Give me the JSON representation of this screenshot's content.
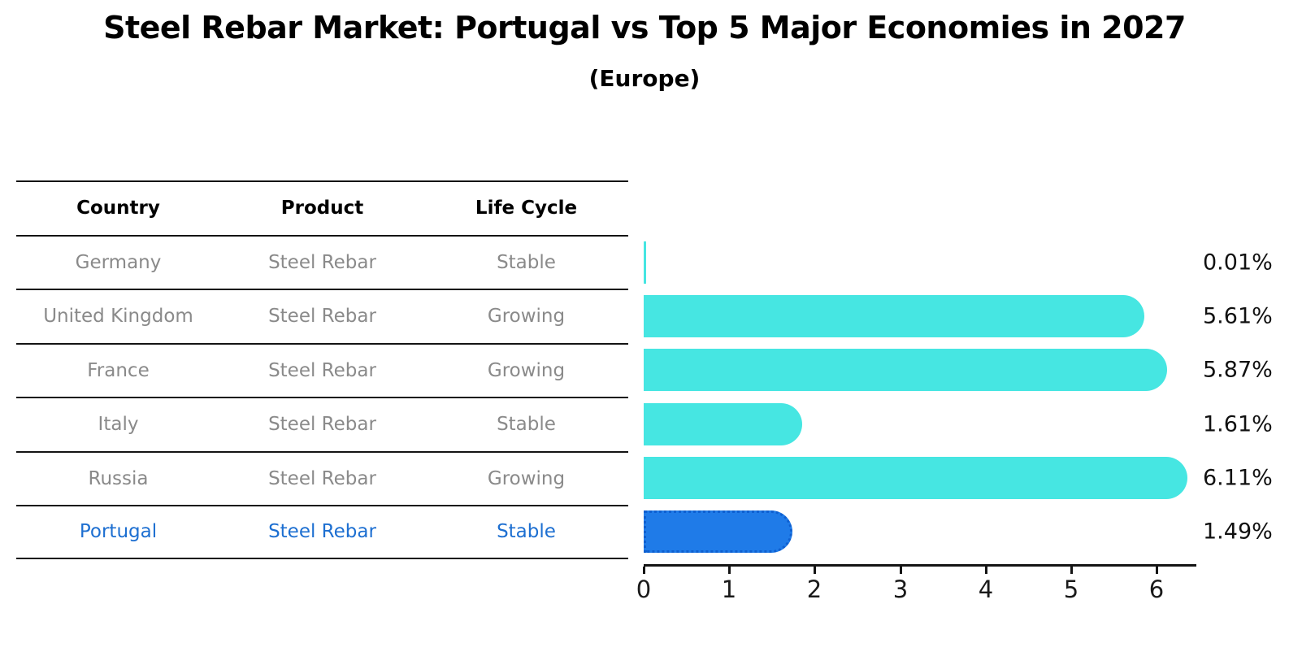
{
  "title": "Steel Rebar Market: Portugal vs Top 5 Major Economies in 2027",
  "subtitle": "(Europe)",
  "table": {
    "headers": [
      "Country",
      "Product",
      "Life Cycle"
    ],
    "rows": [
      {
        "country": "Germany",
        "product": "Steel Rebar",
        "life_cycle": "Stable",
        "highlighted": false
      },
      {
        "country": "United Kingdom",
        "product": "Steel Rebar",
        "life_cycle": "Growing",
        "highlighted": false
      },
      {
        "country": "France",
        "product": "Steel Rebar",
        "life_cycle": "Growing",
        "highlighted": false
      },
      {
        "country": "Italy",
        "product": "Steel Rebar",
        "life_cycle": "Stable",
        "highlighted": false
      },
      {
        "country": "Russia",
        "product": "Steel Rebar",
        "life_cycle": "Growing",
        "highlighted": false
      },
      {
        "country": "Portugal",
        "product": "Steel Rebar",
        "life_cycle": "Stable",
        "highlighted": true
      }
    ]
  },
  "chart_data": {
    "type": "bar",
    "orientation": "horizontal",
    "title": "Steel Rebar Market: Portugal vs Top 5 Major Economies in 2027",
    "subtitle": "(Europe)",
    "categories": [
      "Germany",
      "United Kingdom",
      "France",
      "Italy",
      "Russia",
      "Portugal"
    ],
    "values": [
      0.01,
      5.61,
      5.87,
      1.61,
      6.11,
      1.49
    ],
    "value_labels": [
      "0.01%",
      "5.61%",
      "5.87%",
      "1.61%",
      "6.11%",
      "1.49%"
    ],
    "highlighted_category": "Portugal",
    "x_ticks": [
      "0",
      "1",
      "2",
      "3",
      "4",
      "5",
      "6"
    ],
    "xlim": [
      0,
      6.45
    ],
    "grid": false,
    "legend": "none",
    "colors": {
      "bar_default": "#46e6e2",
      "bar_highlight": "#1f7be8",
      "bar_highlight_border": "#0e5fd0",
      "highlight_text": "#1d6fd1",
      "muted_text": "#8a8a8a",
      "axis_line": "#141414",
      "value_label": "#111111"
    }
  }
}
